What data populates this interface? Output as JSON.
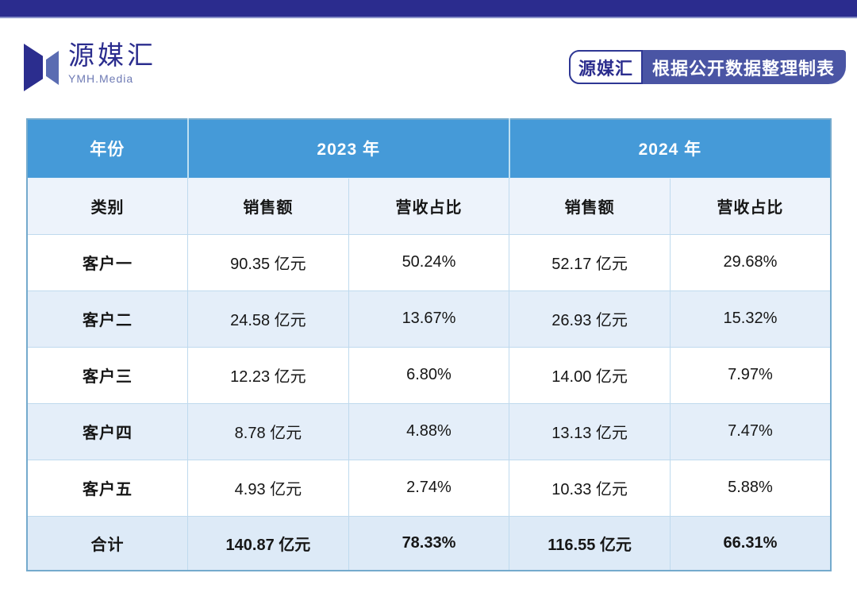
{
  "colors": {
    "topbar": "#2b2c8e",
    "header_blue": "#459ad8",
    "header2_bg": "#edf3fb",
    "row_alt_bg": "#e4eef9",
    "total_row_bg": "#ddeaf7",
    "table_border": "#bfdaee",
    "badge_bg": "#4a55a4",
    "logo_navy": "#2b2d8e",
    "logo_light_blue": "#5a6cb2"
  },
  "logo": {
    "name": "源媒汇",
    "subtitle": "YMH.Media"
  },
  "badge": {
    "brand": "源媒汇",
    "text": "根据公开数据整理制表"
  },
  "table": {
    "header_year": {
      "label": "年份",
      "y2023": "2023 年",
      "y2024": "2024 年"
    },
    "header_cols": {
      "category": "类别",
      "sales_2023": "销售额",
      "share_2023": "营收占比",
      "sales_2024": "销售额",
      "share_2024": "营收占比"
    },
    "rows": [
      {
        "label": "客户一",
        "s23": "90.35 亿元",
        "p23": "50.24%",
        "s24": "52.17 亿元",
        "p24": "29.68%"
      },
      {
        "label": "客户二",
        "s23": "24.58 亿元",
        "p23": "13.67%",
        "s24": "26.93 亿元",
        "p24": "15.32%"
      },
      {
        "label": "客户三",
        "s23": "12.23 亿元",
        "p23": "6.80%",
        "s24": "14.00 亿元",
        "p24": "7.97%"
      },
      {
        "label": "客户四",
        "s23": "8.78 亿元",
        "p23": "4.88%",
        "s24": "13.13 亿元",
        "p24": "7.47%"
      },
      {
        "label": "客户五",
        "s23": "4.93 亿元",
        "p23": "2.74%",
        "s24": "10.33 亿元",
        "p24": "5.88%"
      }
    ],
    "total": {
      "label": "合计",
      "s23": "140.87 亿元",
      "p23": "78.33%",
      "s24": "116.55 亿元",
      "p24": "66.31%"
    }
  },
  "chart_data": {
    "type": "table",
    "title": "",
    "columns": [
      "类别",
      "2023年 销售额",
      "2023年 营收占比",
      "2024年 销售额",
      "2024年 营收占比"
    ],
    "rows": [
      [
        "客户一",
        "90.35 亿元",
        "50.24%",
        "52.17 亿元",
        "29.68%"
      ],
      [
        "客户二",
        "24.58 亿元",
        "13.67%",
        "26.93 亿元",
        "15.32%"
      ],
      [
        "客户三",
        "12.23 亿元",
        "6.80%",
        "14.00 亿元",
        "7.97%"
      ],
      [
        "客户四",
        "8.78 亿元",
        "4.88%",
        "13.13 亿元",
        "7.47%"
      ],
      [
        "客户五",
        "4.93 亿元",
        "2.74%",
        "10.33 亿元",
        "5.88%"
      ],
      [
        "合计",
        "140.87 亿元",
        "78.33%",
        "116.55 亿元",
        "66.31%"
      ]
    ],
    "numeric": {
      "categories": [
        "客户一",
        "客户二",
        "客户三",
        "客户四",
        "客户五",
        "合计"
      ],
      "sales_2023_yi_yuan": [
        90.35,
        24.58,
        12.23,
        8.78,
        4.93,
        140.87
      ],
      "share_2023_pct": [
        50.24,
        13.67,
        6.8,
        4.88,
        2.74,
        78.33
      ],
      "sales_2024_yi_yuan": [
        52.17,
        26.93,
        14.0,
        13.13,
        10.33,
        116.55
      ],
      "share_2024_pct": [
        29.68,
        15.32,
        7.97,
        7.47,
        5.88,
        66.31
      ]
    },
    "source_note": "源媒汇 根据公开数据整理制表"
  }
}
